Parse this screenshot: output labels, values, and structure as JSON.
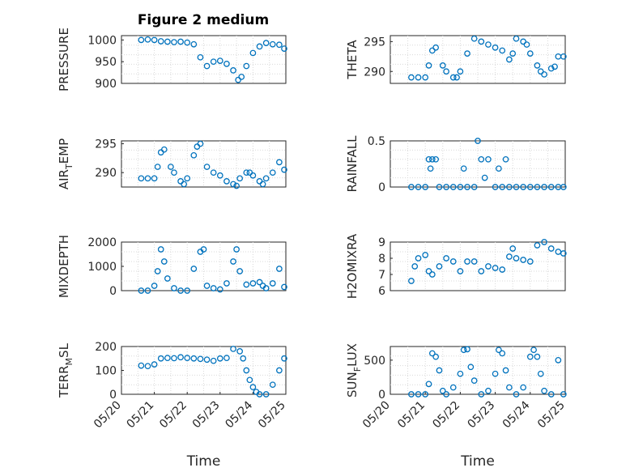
{
  "figure_title": "Figure 2 medium",
  "chart_data": [
    {
      "type": "scatter",
      "id": "pressure",
      "ylabel": "PRESSURE",
      "ylabel_sub": "",
      "ylabel_tail": "",
      "xlabel": "",
      "xlim": [
        0,
        5
      ],
      "ylim": [
        900,
        1010
      ],
      "yticks": [
        900,
        950,
        1000
      ],
      "ytick_labels": [
        "900",
        "950",
        "1000"
      ],
      "xticks": [],
      "xtick_labels": [],
      "grid": true,
      "x": [
        0.6,
        0.8,
        1.0,
        1.2,
        1.4,
        1.6,
        1.8,
        2.0,
        2.2,
        2.4,
        2.6,
        2.8,
        3.0,
        3.2,
        3.4,
        3.55,
        3.65,
        3.8,
        4.0,
        4.2,
        4.4,
        4.6,
        4.8,
        4.95
      ],
      "y": [
        1000,
        1001,
        1000,
        997,
        996,
        995,
        996,
        994,
        990,
        960,
        940,
        950,
        952,
        945,
        930,
        908,
        915,
        940,
        970,
        985,
        993,
        990,
        989,
        980
      ]
    },
    {
      "type": "scatter",
      "id": "theta",
      "ylabel": "THETA",
      "ylabel_sub": "",
      "ylabel_tail": "",
      "xlabel": "",
      "xlim": [
        0,
        5
      ],
      "ylim": [
        288,
        296
      ],
      "yticks": [
        290,
        295
      ],
      "ytick_labels": [
        "290",
        "295"
      ],
      "xticks": [],
      "xtick_labels": [],
      "grid": true,
      "x": [
        0.6,
        0.8,
        1.0,
        1.1,
        1.2,
        1.3,
        1.5,
        1.6,
        1.8,
        1.9,
        2.0,
        2.2,
        2.4,
        2.6,
        2.8,
        3.0,
        3.2,
        3.4,
        3.5,
        3.6,
        3.8,
        3.9,
        4.0,
        4.2,
        4.3,
        4.4,
        4.6,
        4.7,
        4.8,
        4.95
      ],
      "y": [
        289,
        289,
        289,
        291,
        293.5,
        294,
        291,
        290,
        289,
        289,
        290,
        293,
        295.5,
        295,
        294.5,
        294,
        293.5,
        292,
        293,
        295.5,
        295,
        294.5,
        293,
        291,
        290,
        289.5,
        290.5,
        290.8,
        292.5,
        292.5
      ]
    },
    {
      "type": "scatter",
      "id": "airtemp",
      "ylabel": "AIR",
      "ylabel_sub": "T",
      "ylabel_tail": "EMP",
      "xlabel": "",
      "xlim": [
        0,
        5
      ],
      "ylim": [
        287.5,
        295.5
      ],
      "yticks": [
        290,
        295
      ],
      "ytick_labels": [
        "290",
        "295"
      ],
      "xticks": [],
      "xtick_labels": [],
      "grid": true,
      "x": [
        0.6,
        0.8,
        1.0,
        1.1,
        1.2,
        1.3,
        1.5,
        1.6,
        1.8,
        1.9,
        2.0,
        2.2,
        2.3,
        2.4,
        2.6,
        2.8,
        3.0,
        3.2,
        3.4,
        3.5,
        3.6,
        3.8,
        3.9,
        4.0,
        4.2,
        4.3,
        4.4,
        4.6,
        4.8,
        4.95
      ],
      "y": [
        289,
        289,
        289,
        291,
        293.5,
        294,
        291,
        290,
        288.5,
        288,
        289,
        293,
        294.5,
        295,
        291,
        290,
        289.5,
        288.5,
        288,
        287.7,
        289,
        290,
        290,
        289.5,
        288.5,
        288,
        289,
        290,
        291.8,
        290.5
      ]
    },
    {
      "type": "scatter",
      "id": "rainfall",
      "ylabel": "RAINFALL",
      "ylabel_sub": "",
      "ylabel_tail": "",
      "xlabel": "",
      "xlim": [
        0,
        5
      ],
      "ylim": [
        0,
        0.5
      ],
      "yticks": [
        0,
        0.5
      ],
      "ytick_labels": [
        "0",
        "0.5"
      ],
      "xticks": [],
      "xtick_labels": [],
      "grid": true,
      "x": [
        0.6,
        0.8,
        1.0,
        1.1,
        1.15,
        1.2,
        1.3,
        1.4,
        1.6,
        1.8,
        2.0,
        2.1,
        2.2,
        2.4,
        2.5,
        2.6,
        2.7,
        2.8,
        3.0,
        3.1,
        3.2,
        3.3,
        3.4,
        3.6,
        3.8,
        4.0,
        4.2,
        4.4,
        4.6,
        4.8,
        4.95
      ],
      "y": [
        0,
        0,
        0,
        0.3,
        0.2,
        0.3,
        0.3,
        0,
        0,
        0,
        0,
        0.2,
        0,
        0,
        0.5,
        0.3,
        0.1,
        0.3,
        0,
        0.2,
        0,
        0.3,
        0,
        0,
        0,
        0,
        0,
        0,
        0,
        0,
        0
      ]
    },
    {
      "type": "scatter",
      "id": "mixdepth",
      "ylabel": "MIXDEPTH",
      "ylabel_sub": "",
      "ylabel_tail": "",
      "xlabel": "",
      "xlim": [
        0,
        5
      ],
      "ylim": [
        0,
        2000
      ],
      "yticks": [
        0,
        1000,
        2000
      ],
      "ytick_labels": [
        "0",
        "1000",
        "2000"
      ],
      "xticks": [],
      "xtick_labels": [],
      "grid": true,
      "x": [
        0.6,
        0.8,
        1.0,
        1.1,
        1.2,
        1.3,
        1.4,
        1.6,
        1.8,
        2.0,
        2.2,
        2.4,
        2.5,
        2.6,
        2.8,
        3.0,
        3.2,
        3.4,
        3.5,
        3.6,
        3.8,
        4.0,
        4.2,
        4.3,
        4.4,
        4.6,
        4.8,
        4.95
      ],
      "y": [
        0,
        0,
        200,
        800,
        1700,
        1200,
        500,
        100,
        0,
        0,
        900,
        1600,
        1700,
        200,
        100,
        50,
        300,
        1200,
        1700,
        800,
        250,
        300,
        350,
        200,
        100,
        300,
        900,
        150
      ]
    },
    {
      "type": "scatter",
      "id": "h2omixra",
      "ylabel": "H2OMIXRA",
      "ylabel_sub": "",
      "ylabel_tail": "",
      "xlabel": "",
      "xlim": [
        0,
        5
      ],
      "ylim": [
        6,
        9
      ],
      "yticks": [
        6,
        7,
        8,
        9
      ],
      "ytick_labels": [
        "6",
        "7",
        "8",
        "9"
      ],
      "xticks": [],
      "xtick_labels": [],
      "grid": true,
      "x": [
        0.6,
        0.7,
        0.8,
        1.0,
        1.1,
        1.2,
        1.4,
        1.6,
        1.8,
        2.0,
        2.2,
        2.4,
        2.6,
        2.8,
        3.0,
        3.2,
        3.4,
        3.5,
        3.6,
        3.8,
        4.0,
        4.2,
        4.4,
        4.6,
        4.8,
        4.95
      ],
      "y": [
        6.6,
        7.5,
        8,
        8.2,
        7.2,
        7,
        7.5,
        8,
        7.8,
        7.2,
        7.8,
        7.8,
        7.2,
        7.5,
        7.4,
        7.3,
        8.1,
        8.6,
        8,
        7.9,
        7.8,
        8.8,
        9,
        8.6,
        8.4,
        8.3
      ]
    },
    {
      "type": "scatter",
      "id": "terrmsl",
      "ylabel": "TERR",
      "ylabel_sub": "M",
      "ylabel_tail": "SL",
      "xlabel": "Time",
      "xlim": [
        0,
        5
      ],
      "ylim": [
        0,
        200
      ],
      "yticks": [
        0,
        100,
        200
      ],
      "ytick_labels": [
        "0",
        "100",
        "200"
      ],
      "xticks": [
        0,
        1,
        2,
        3,
        4,
        5
      ],
      "xtick_labels": [
        "05/20",
        "05/21",
        "05/22",
        "05/23",
        "05/24",
        "05/25"
      ],
      "grid": true,
      "x": [
        0.6,
        0.8,
        1.0,
        1.2,
        1.4,
        1.6,
        1.8,
        2.0,
        2.2,
        2.4,
        2.6,
        2.8,
        3.0,
        3.2,
        3.4,
        3.6,
        3.7,
        3.8,
        3.9,
        4.0,
        4.1,
        4.2,
        4.4,
        4.6,
        4.8,
        4.95
      ],
      "y": [
        120,
        118,
        125,
        150,
        152,
        151,
        155,
        152,
        150,
        148,
        145,
        140,
        150,
        152,
        190,
        180,
        150,
        100,
        60,
        30,
        10,
        0,
        0,
        40,
        100,
        150
      ]
    },
    {
      "type": "scatter",
      "id": "sunflux",
      "ylabel": "SUN",
      "ylabel_sub": "F",
      "ylabel_tail": "LUX",
      "xlabel": "Time",
      "xlim": [
        0,
        5
      ],
      "ylim": [
        0,
        700
      ],
      "yticks": [
        0,
        500
      ],
      "ytick_labels": [
        "0",
        "500"
      ],
      "xticks": [
        0,
        1,
        2,
        3,
        4,
        5
      ],
      "xtick_labels": [
        "05/20",
        "05/21",
        "05/22",
        "05/23",
        "05/24",
        "05/25"
      ],
      "grid": true,
      "x": [
        0.6,
        0.8,
        1.0,
        1.1,
        1.2,
        1.3,
        1.4,
        1.5,
        1.6,
        1.8,
        2.0,
        2.1,
        2.2,
        2.3,
        2.4,
        2.6,
        2.8,
        3.0,
        3.1,
        3.2,
        3.3,
        3.4,
        3.6,
        3.8,
        4.0,
        4.1,
        4.2,
        4.3,
        4.4,
        4.6,
        4.8,
        4.95
      ],
      "y": [
        0,
        0,
        0,
        150,
        600,
        550,
        350,
        50,
        0,
        100,
        300,
        650,
        660,
        400,
        200,
        0,
        50,
        300,
        650,
        600,
        350,
        100,
        0,
        100,
        550,
        650,
        550,
        300,
        50,
        0,
        500,
        0
      ]
    }
  ]
}
